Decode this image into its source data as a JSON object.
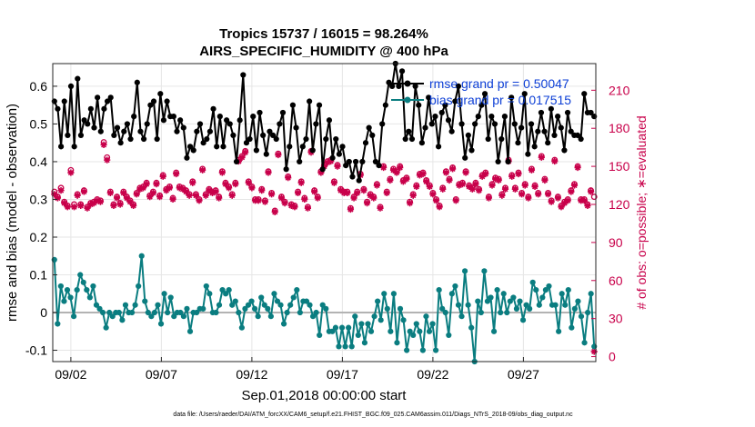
{
  "chart_data": {
    "type": "line",
    "title": "Tropics 15737 / 16015 = 98.264%",
    "subtitle": "AIRS_SPECIFIC_HUMIDITY @ 400 hPa",
    "xlabel": "Sep.01,2018 00:00:00 start",
    "ylabel": "rmse and bias (model - observation)",
    "y2label": "# of obs: o=possible; ∗=evaluated",
    "footnote": "data file: /Users/raeder/DAI/ATM_forcXX/CAM6_setup/f.e21.FHIST_BGC.f09_025.CAM6assim.011/Diags_NTrS_2018-09/obs_diag_output.nc",
    "x_ticks": [
      {
        "value": 2,
        "label": "09/02"
      },
      {
        "value": 7,
        "label": "09/07"
      },
      {
        "value": 12,
        "label": "09/12"
      },
      {
        "value": 17,
        "label": "09/17"
      },
      {
        "value": 22,
        "label": "09/22"
      },
      {
        "value": 27,
        "label": "09/27"
      }
    ],
    "xlim": [
      1.0,
      31.0
    ],
    "ylim": [
      -0.13,
      0.66
    ],
    "y_ticks": [
      "-0.1",
      "0",
      "0.1",
      "0.2",
      "0.3",
      "0.4",
      "0.5",
      "0.6"
    ],
    "y2lim": [
      -3.9,
      231.0
    ],
    "y2_ticks": [
      "0",
      "30",
      "60",
      "90",
      "120",
      "150",
      "180",
      "210"
    ],
    "colors": {
      "rmse": "#000000",
      "bias": "#0a7d80",
      "obs": "#c8004a",
      "legend_text": "#0d3fd6",
      "zero_line": "#b3b3b3",
      "grid": "#e6e6e6"
    },
    "legend": {
      "rmse_label": "rmse grand pr = 0.50047",
      "bias_label": "bias grand pr = 0.017515",
      "placement": "top-right"
    },
    "series": [
      {
        "name": "rmse",
        "axis": "left",
        "values": [
          0.56,
          0.54,
          0.44,
          0.56,
          0.47,
          0.6,
          0.44,
          0.62,
          0.47,
          0.51,
          0.5,
          0.54,
          0.49,
          0.57,
          0.48,
          0.54,
          0.56,
          0.57,
          0.47,
          0.49,
          0.45,
          0.48,
          0.5,
          0.46,
          0.52,
          0.61,
          0.48,
          0.46,
          0.5,
          0.55,
          0.56,
          0.46,
          0.58,
          0.51,
          0.56,
          0.52,
          0.52,
          0.48,
          0.51,
          0.49,
          0.41,
          0.44,
          0.43,
          0.48,
          0.5,
          0.45,
          0.46,
          0.48,
          0.54,
          0.44,
          0.52,
          0.44,
          0.51,
          0.5,
          0.47,
          0.4,
          0.51,
          0.63,
          0.45,
          0.46,
          0.52,
          0.43,
          0.53,
          0.47,
          0.42,
          0.48,
          0.47,
          0.46,
          0.5,
          0.53,
          0.38,
          0.44,
          0.55,
          0.49,
          0.4,
          0.44,
          0.46,
          0.56,
          0.43,
          0.5,
          0.55,
          0.38,
          0.46,
          0.51,
          0.41,
          0.46,
          0.42,
          0.44,
          0.39,
          0.4,
          0.36,
          0.4,
          0.35,
          0.4,
          0.45,
          0.49,
          0.47,
          0.4,
          0.39,
          0.5,
          0.55,
          0.61,
          0.6,
          0.66,
          0.6,
          0.64,
          0.46,
          0.48,
          0.46,
          0.6,
          0.55,
          0.45,
          0.49,
          0.57,
          0.5,
          0.52,
          0.44,
          0.53,
          0.55,
          0.51,
          0.48,
          0.56,
          0.6,
          0.5,
          0.41,
          0.47,
          0.43,
          0.5,
          0.52,
          0.55,
          0.58,
          0.46,
          0.52,
          0.5,
          0.4,
          0.46,
          0.52,
          0.4,
          0.57,
          0.5,
          0.45,
          0.49,
          0.58,
          0.42,
          0.5,
          0.44,
          0.48,
          0.53,
          0.48,
          0.45,
          0.54,
          0.47,
          0.52,
          0.49,
          0.43,
          0.53,
          0.48,
          0.47,
          0.47,
          0.46,
          0.58,
          0.53,
          0.53,
          0.52
        ]
      },
      {
        "name": "bias",
        "axis": "left",
        "values": [
          0.14,
          -0.03,
          0.07,
          0.03,
          0.06,
          0.04,
          -0.01,
          0.06,
          0.1,
          0.08,
          0.06,
          0.04,
          0.07,
          0.02,
          0.01,
          0.0,
          -0.04,
          0.0,
          -0.01,
          0.0,
          0.0,
          -0.02,
          0.02,
          0.0,
          0.0,
          0.02,
          0.07,
          0.15,
          0.03,
          0.0,
          -0.01,
          0.0,
          0.02,
          -0.03,
          0.05,
          0.0,
          0.04,
          -0.01,
          0.0,
          0.0,
          -0.01,
          0.01,
          -0.05,
          0.0,
          0.0,
          0.01,
          0.01,
          0.07,
          0.05,
          0.0,
          0.0,
          0.02,
          0.06,
          0.05,
          0.06,
          0.02,
          0.03,
          0.0,
          -0.04,
          0.01,
          0.02,
          0.03,
          0.01,
          -0.01,
          0.04,
          0.02,
          0.01,
          -0.01,
          0.05,
          0.03,
          0.02,
          -0.03,
          0.0,
          0.02,
          0.04,
          0.06,
          0.0,
          0.03,
          0.03,
          0.02,
          -0.01,
          0.0,
          -0.06,
          0.02,
          0.01,
          -0.05,
          -0.05,
          -0.04,
          -0.09,
          -0.04,
          -0.09,
          -0.04,
          -0.09,
          -0.01,
          -0.06,
          -0.03,
          -0.08,
          -0.03,
          -0.05,
          -0.01,
          0.03,
          -0.02,
          0.05,
          0.01,
          -0.05,
          0.05,
          -0.08,
          0.01,
          -0.02,
          -0.1,
          -0.05,
          -0.06,
          -0.03,
          -0.05,
          -0.1,
          -0.01,
          -0.05,
          -0.03,
          -0.1,
          0.06,
          0.01,
          0.0,
          -0.06,
          0.05,
          0.07,
          0.02,
          -0.01,
          0.11,
          0.02,
          -0.04,
          -0.13,
          0.03,
          0.0,
          0.11,
          0.03,
          0.04,
          -0.05,
          0.06,
          0.0,
          0.05,
          0.0,
          0.03,
          0.04,
          0.01,
          0.03,
          -0.02,
          0.02,
          0.01,
          0.08,
          0.06,
          0.02,
          0.04,
          0.06,
          0.07,
          0.02,
          0.02,
          -0.05,
          0.05,
          0.02,
          0.06,
          -0.04,
          0.01,
          0.03,
          -0.01,
          -0.08,
          0.0,
          0.05,
          -0.09
        ]
      },
      {
        "name": "obs_possible",
        "axis": "right",
        "values": [
          130,
          126,
          133,
          122,
          119,
          147,
          120,
          128,
          120,
          131,
          118,
          121,
          122,
          124,
          123,
          169,
          157,
          130,
          120,
          126,
          121,
          130,
          126,
          123,
          120,
          129,
          133,
          134,
          137,
          127,
          130,
          137,
          127,
          143,
          132,
          134,
          125,
          145,
          134,
          133,
          131,
          128,
          138,
          128,
          124,
          148,
          128,
          132,
          130,
          131,
          126,
          146,
          137,
          134,
          128,
          137,
          155,
          158,
          162,
          138,
          134,
          124,
          124,
          132,
          123,
          146,
          129,
          115,
          160,
          126,
          122,
          142,
          120,
          119,
          130,
          138,
          125,
          118,
          162,
          131,
          126,
          146,
          151,
          154,
          155,
          138,
          151,
          132,
          130,
          130,
          117,
          126,
          130,
          144,
          132,
          122,
          128,
          126,
          136,
          118,
          150,
          130,
          140,
          148,
          146,
          150,
          139,
          141,
          122,
          128,
          135,
          144,
          145,
          139,
          135,
          129,
          124,
          119,
          133,
          146,
          140,
          149,
          124,
          136,
          137,
          146,
          135,
          133,
          137,
          132,
          143,
          145,
          126,
          136,
          141,
          140,
          128,
          133,
          155,
          143,
          133,
          145,
          129,
          136,
          126,
          148,
          135,
          129,
          158,
          140,
          129,
          123,
          155,
          126,
          119,
          122,
          124,
          131,
          136,
          150,
          124,
          124,
          120,
          131,
          126
        ]
      },
      {
        "name": "obs_evaluated",
        "axis": "right",
        "values": [
          128,
          125,
          131,
          121,
          118,
          145,
          118,
          127,
          119,
          130,
          117,
          120,
          121,
          123,
          122,
          167,
          155,
          129,
          119,
          125,
          120,
          129,
          125,
          122,
          119,
          128,
          132,
          133,
          136,
          126,
          129,
          136,
          126,
          142,
          131,
          133,
          124,
          144,
          133,
          132,
          130,
          127,
          137,
          127,
          123,
          147,
          127,
          131,
          129,
          130,
          125,
          145,
          136,
          133,
          127,
          136,
          154,
          157,
          161,
          137,
          133,
          123,
          123,
          131,
          122,
          145,
          128,
          114,
          159,
          125,
          121,
          141,
          119,
          118,
          129,
          137,
          124,
          117,
          161,
          130,
          125,
          145,
          150,
          153,
          154,
          137,
          150,
          131,
          129,
          129,
          116,
          125,
          129,
          143,
          131,
          121,
          127,
          125,
          135,
          117,
          149,
          129,
          139,
          147,
          145,
          149,
          138,
          140,
          121,
          127,
          134,
          143,
          144,
          138,
          134,
          128,
          123,
          118,
          132,
          145,
          139,
          148,
          123,
          135,
          136,
          145,
          134,
          132,
          136,
          131,
          142,
          144,
          125,
          135,
          140,
          139,
          127,
          132,
          154,
          142,
          132,
          144,
          128,
          135,
          125,
          147,
          134,
          128,
          157,
          139,
          128,
          122,
          154,
          125,
          118,
          121,
          123,
          130,
          135,
          149,
          123,
          123,
          119,
          130,
          4
        ]
      }
    ]
  }
}
